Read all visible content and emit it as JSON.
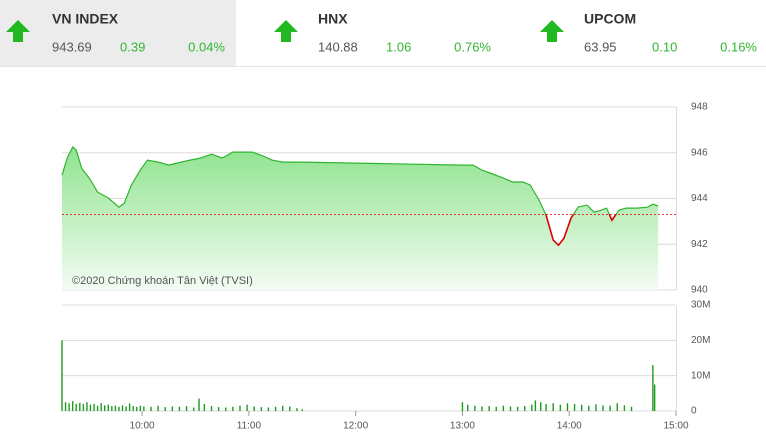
{
  "indices": [
    {
      "name": "VN INDEX",
      "price": "943.69",
      "change": "0.39",
      "percent": "0.04%"
    },
    {
      "name": "HNX",
      "price": "140.88",
      "change": "1.06",
      "percent": "0.76%"
    },
    {
      "name": "UPCOM",
      "price": "63.95",
      "change": "0.10",
      "percent": "0.16%"
    }
  ],
  "chart_data": [
    {
      "type": "line",
      "annotation": "©2020 Chứng khoán Tân Việt (TVSI)",
      "x": [
        555,
        558,
        561,
        563,
        566,
        571,
        575,
        581,
        587,
        590,
        594,
        599,
        603,
        609,
        615,
        620,
        627,
        633,
        639,
        645,
        651,
        656,
        662,
        668,
        673,
        679,
        684,
        690,
        780,
        786,
        791,
        797,
        803,
        808,
        814,
        818,
        823,
        827,
        831,
        834,
        837,
        841,
        845,
        850,
        854,
        858,
        861,
        864,
        868,
        872,
        878,
        884,
        887,
        890
      ],
      "values": [
        945.02,
        945.77,
        946.25,
        946.12,
        945.33,
        944.81,
        944.28,
        944.02,
        943.62,
        943.8,
        944.59,
        945.24,
        945.68,
        945.59,
        945.46,
        945.55,
        945.68,
        945.77,
        945.94,
        945.77,
        946.03,
        946.03,
        946.03,
        945.86,
        945.68,
        945.59,
        945.59,
        945.59,
        945.46,
        945.46,
        945.24,
        945.07,
        944.89,
        944.72,
        944.72,
        944.59,
        943.93,
        943.27,
        942.18,
        941.96,
        942.26,
        943.14,
        943.62,
        943.71,
        943.4,
        943.49,
        943.58,
        943.05,
        943.49,
        943.58,
        943.58,
        943.62,
        943.75,
        943.67
      ],
      "color": "#2fb52f",
      "down_color": "#dd0000",
      "reference_line": 943.3,
      "xlim": [
        555,
        900
      ],
      "ylim": [
        940,
        948
      ],
      "yticks": [
        940,
        942,
        944,
        946,
        948
      ],
      "grid": true
    },
    {
      "type": "bar",
      "x": [
        555,
        557,
        559,
        561,
        563,
        565,
        567,
        569,
        571,
        573,
        575,
        577,
        579,
        581,
        583,
        585,
        587,
        589,
        591,
        593,
        595,
        597,
        599,
        601,
        605,
        609,
        613,
        617,
        621,
        625,
        629,
        632,
        635,
        639,
        643,
        647,
        651,
        655,
        659,
        663,
        667,
        671,
        675,
        679,
        683,
        687,
        690,
        780,
        783,
        787,
        791,
        795,
        799,
        803,
        807,
        811,
        815,
        819,
        821,
        824,
        827,
        831,
        835,
        839,
        843,
        847,
        851,
        855,
        859,
        863,
        867,
        871,
        875,
        887,
        888
      ],
      "values": [
        20,
        2.5,
        2.2,
        2.8,
        2,
        2.3,
        2,
        2.5,
        1.8,
        2,
        1.5,
        2.2,
        1.6,
        1.8,
        1.4,
        1.5,
        1.2,
        1.6,
        1.3,
        2.1,
        1.4,
        1.2,
        1.5,
        1.3,
        1.2,
        1.5,
        1.1,
        1.3,
        1.2,
        1.4,
        1,
        3.5,
        2,
        1.4,
        1.1,
        1,
        1.2,
        1.5,
        1.8,
        1.3,
        1.1,
        1,
        1.2,
        1.5,
        1.3,
        0.8,
        0.5,
        2.5,
        1.8,
        1.5,
        1.3,
        1.4,
        1.2,
        1.5,
        1.3,
        1.2,
        1.4,
        1.8,
        3,
        2.5,
        2,
        2.2,
        1.8,
        2.2,
        2,
        1.8,
        1.5,
        1.9,
        1.6,
        1.5,
        2.2,
        1.6,
        1.2,
        13,
        7.5
      ],
      "color": "#1f9a1f",
      "xlim": [
        555,
        900
      ],
      "ylim": [
        0,
        30
      ],
      "yticks": [
        0,
        {
          "value": 10,
          "label": "10M"
        },
        {
          "value": 20,
          "label": "20M"
        },
        {
          "value": 30,
          "label": "30M"
        }
      ],
      "xticks": [
        {
          "value": 600,
          "label": "10:00"
        },
        {
          "value": 660,
          "label": "11:00"
        },
        {
          "value": 720,
          "label": "12:00"
        },
        {
          "value": 780,
          "label": "13:00"
        },
        {
          "value": 840,
          "label": "14:00"
        },
        {
          "value": 900,
          "label": "15:00"
        }
      ],
      "grid": true
    }
  ]
}
